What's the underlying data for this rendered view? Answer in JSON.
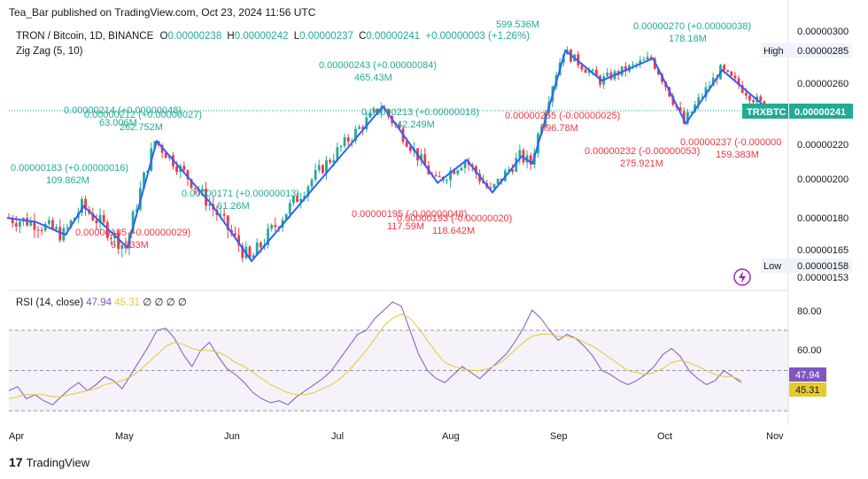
{
  "header": {
    "publisher": "Tea_Bar published on TradingView.com, Oct 23, 2024 11:56 UTC"
  },
  "legend": {
    "symbol": "TRON / Bitcoin, 1D, BINANCE",
    "open_label": "O",
    "open": "0.00000238",
    "high_label": "H",
    "high": "0.00000242",
    "low_label": "L",
    "low": "0.00000237",
    "close_label": "C",
    "close": "0.00000241",
    "change": "+0.00000003 (+1.26%)",
    "indicator": "Zig Zag (5, 10)"
  },
  "rsi_legend": {
    "label": "RSI (14, close)",
    "rsi": "47.94",
    "ma": "45.31",
    "zeros": "∅ ∅ ∅ ∅"
  },
  "price_axis": {
    "ticks": [
      "0.00000300",
      "0.00000260",
      "0.00000220",
      "0.00000200",
      "0.00000180",
      "0.00000165",
      "0.00000153"
    ],
    "high_label": "High",
    "high_value": "0.00000285",
    "low_label": "Low",
    "low_value": "0.00000158",
    "symbol_tag": "TRXBTC",
    "last_value": "0.00000241"
  },
  "rsi_axis": {
    "ticks": [
      "80.00",
      "60.00"
    ],
    "rsi_value": "47.94",
    "ma_value": "45.31"
  },
  "time_axis": [
    "Apr",
    "May",
    "Jun",
    "Jul",
    "Aug",
    "Sep",
    "Oct",
    "Nov"
  ],
  "footer": {
    "brand": "TradingView"
  },
  "colors": {
    "up": "#22ab94",
    "down": "#f23645",
    "zigzag": "#2962ff",
    "rsi": "#7e57c2",
    "rsi_ma": "#e6c830",
    "band": "#7e57c2"
  },
  "chart_data": [
    {
      "type": "line",
      "title": "TRON / Bitcoin, 1D, BINANCE",
      "series": [
        {
          "name": "Zig Zag (5, 10)",
          "x": [
            "Mar 28",
            "Apr 05",
            "Apr 13",
            "Apr 18",
            "Apr 30",
            "May 08",
            "May 23",
            "Jun 03",
            "Jul 09",
            "Jul 24",
            "Aug 01",
            "Aug 08",
            "Aug 16",
            "Aug 19",
            "Aug 28",
            "Sep 07",
            "Sep 21",
            "Sep 30",
            "Oct 10",
            "Oct 23"
          ],
          "y": [
            1.8e-06,
            1.78e-06,
            1.72e-06,
            1.86e-06,
            1.66e-06,
            2.22e-06,
            1.87e-06,
            1.6e-06,
            2.44e-06,
            1.98e-06,
            2.11e-06,
            1.93e-06,
            2.13e-06,
            2.09e-06,
            2.85e-06,
            2.62e-06,
            2.79e-06,
            2.33e-06,
            2.7e-06,
            2.41e-06
          ]
        }
      ],
      "zigzag_labels": [
        {
          "text": "0.00000243 (+0.00000084)",
          "sub": "465.43M",
          "dir": "up"
        },
        {
          "text": "0.00000213 (+0.00000018)",
          "sub": "42.249M",
          "dir": "up"
        },
        {
          "text": "0.00000270 (+0.00000038)",
          "sub": "178.18M",
          "dir": "up"
        },
        {
          "text": "0.00000171 (+0.00000013)",
          "sub": "61.26M",
          "dir": "up"
        },
        {
          "text": "0.00000212 (+0.00000027)",
          "sub": "262.752M",
          "dir": "up"
        },
        {
          "text": "0.00000214 (+0.00000048)",
          "sub": "63.006M",
          "dir": "up"
        },
        {
          "text": "0.00000183 (+0.00000016)",
          "sub": "109.862M",
          "dir": "up"
        },
        {
          "text": "599.536M",
          "sub": "",
          "dir": "up"
        },
        {
          "text": "0.00000255 (-0.00000025)",
          "sub": "396.78M",
          "dir": "down"
        },
        {
          "text": "0.00000232 (-0.00000053)",
          "sub": "275.921M",
          "dir": "down"
        },
        {
          "text": "0.00000237 (-0.000000",
          "sub": "159.383M",
          "dir": "down"
        },
        {
          "text": "0.00000195 (-0.00000048)",
          "sub": "117.59M",
          "dir": "down"
        },
        {
          "text": "0.00000193 (-0.00000020)",
          "sub": "118.642M",
          "dir": "down"
        },
        {
          "text": "0.00000185 (-0.00000029)",
          "sub": "67.633M",
          "dir": "down"
        }
      ],
      "ylim": [
        1.53e-06,
        3e-06
      ],
      "last": 2.41e-06,
      "high": 2.85e-06,
      "low": 1.58e-06,
      "grid": false
    },
    {
      "type": "line",
      "title": "RSI (14, close)",
      "series": [
        {
          "name": "RSI",
          "y": [
            40,
            42,
            36,
            38,
            35,
            33,
            37,
            41,
            44,
            40,
            43,
            47,
            45,
            41,
            48,
            55,
            62,
            70,
            71,
            66,
            58,
            52,
            60,
            64,
            57,
            51,
            48,
            44,
            39,
            36,
            34,
            35,
            33,
            37,
            40,
            43,
            46,
            50,
            56,
            62,
            68,
            70,
            76,
            80,
            84,
            82,
            70,
            58,
            50,
            46,
            44,
            48,
            52,
            49,
            46,
            50,
            54,
            58,
            64,
            71,
            80,
            76,
            70,
            65,
            68,
            66,
            62,
            57,
            50,
            48,
            45,
            43,
            45,
            48,
            52,
            58,
            61,
            57,
            50,
            46,
            43,
            45,
            50,
            47,
            44
          ]
        },
        {
          "name": "RSI MA",
          "y": [
            36,
            37,
            38,
            38,
            38,
            37,
            37,
            38,
            39,
            40,
            41,
            43,
            44,
            45,
            47,
            50,
            54,
            58,
            62,
            64,
            63,
            61,
            60,
            60,
            59,
            57,
            54,
            52,
            49,
            46,
            43,
            41,
            39,
            38,
            38,
            39,
            41,
            43,
            46,
            50,
            55,
            60,
            66,
            72,
            76,
            78,
            76,
            71,
            65,
            59,
            54,
            52,
            51,
            50,
            50,
            51,
            53,
            56,
            60,
            64,
            67,
            68,
            68,
            67,
            67,
            66,
            64,
            62,
            59,
            56,
            53,
            50,
            49,
            48,
            49,
            51,
            54,
            55,
            54,
            52,
            50,
            48,
            47,
            47,
            45
          ]
        }
      ],
      "ylim": [
        30,
        90
      ],
      "bands": [
        70,
        30
      ],
      "last_rsi": 47.94,
      "last_ma": 45.31
    }
  ]
}
